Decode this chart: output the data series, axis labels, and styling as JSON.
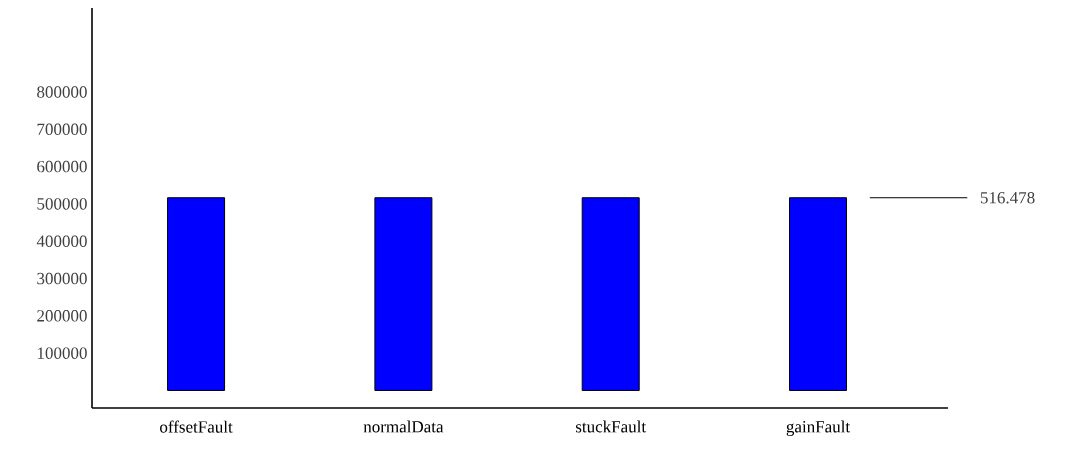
{
  "chart_data": {
    "type": "bar",
    "categories": [
      "offsetFault",
      "normalData",
      "stuckFault",
      "gainFault"
    ],
    "values": [
      516478,
      516478,
      516478,
      516478
    ],
    "color": "#0000ff",
    "ylim": [
      -47000,
      1025000
    ],
    "yticks": [
      100000,
      200000,
      300000,
      400000,
      500000,
      600000,
      700000,
      800000
    ],
    "ref_lines": [
      {
        "axis": "y",
        "value": 516478,
        "label": "516.478"
      }
    ]
  }
}
